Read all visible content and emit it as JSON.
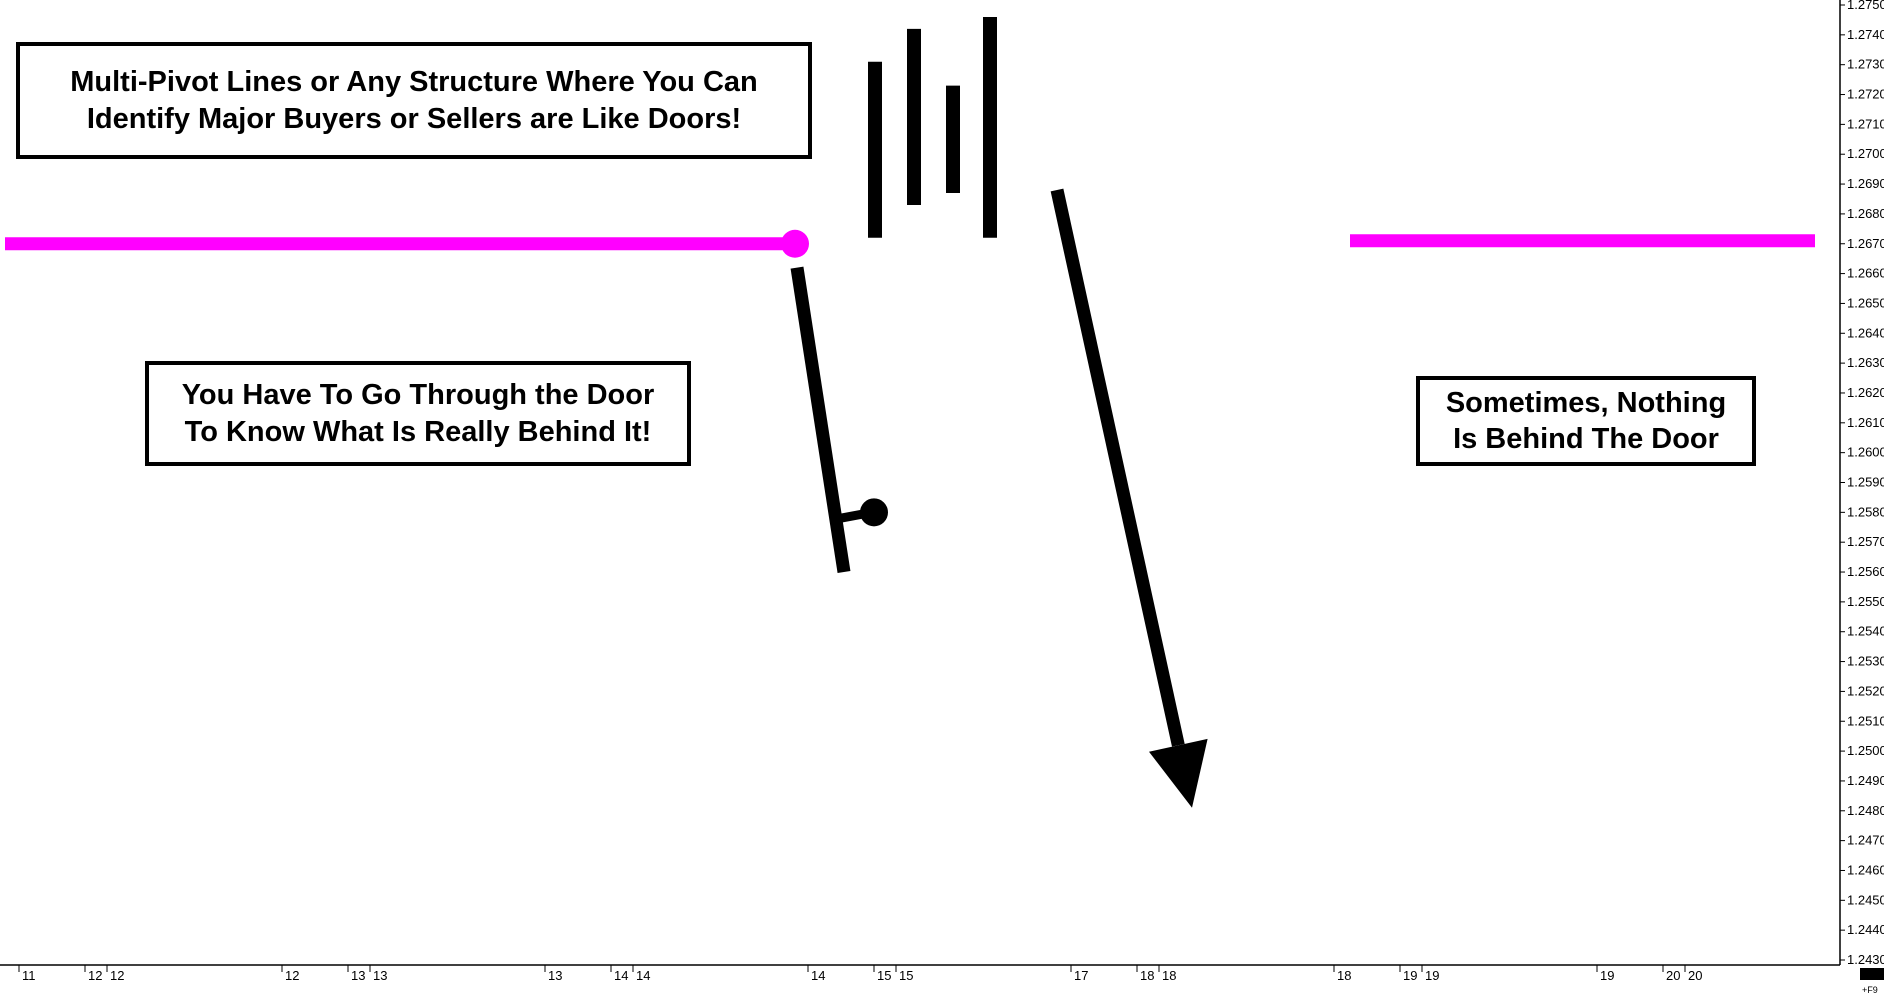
{
  "chart_data": {
    "type": "bar",
    "title": "",
    "xlabel": "",
    "ylabel": "",
    "ylim": [
      1.243,
      1.275
    ],
    "y_ticks": [
      "1.2430",
      "1.2440",
      "1.2450",
      "1.2460",
      "1.2470",
      "1.2480",
      "1.2490",
      "1.2500",
      "1.2510",
      "1.2520",
      "1.2530",
      "1.2540",
      "1.2550",
      "1.2560",
      "1.2570",
      "1.2580",
      "1.2590",
      "1.2600",
      "1.2610",
      "1.2620",
      "1.2630",
      "1.2640",
      "1.2650",
      "1.2660",
      "1.2670",
      "1.2680",
      "1.2690",
      "1.2700",
      "1.2710",
      "1.2720",
      "1.2730",
      "1.2740",
      "1.2750"
    ],
    "x_ticks": [
      "11",
      "12",
      "12",
      "12",
      "13",
      "13",
      "13",
      "14",
      "14",
      "14",
      "15",
      "15",
      "17",
      "18",
      "18",
      "18",
      "19",
      "19",
      "19",
      "20",
      "20"
    ],
    "grid": false,
    "level_line": {
      "price": 1.267,
      "color": "#ff00ff"
    },
    "bars": [
      {
        "high": 1.2662,
        "low": 1.256,
        "close": 1.258
      },
      {
        "high": 1.2731,
        "low": 1.2672
      },
      {
        "high": 1.2742,
        "low": 1.2683
      },
      {
        "high": 1.2723,
        "low": 1.2687
      },
      {
        "high": 1.2746,
        "low": 1.2672
      }
    ],
    "arrow": {
      "from_price": 1.2688,
      "to_price": 1.2481,
      "color": "#000000"
    },
    "annotations": [
      {
        "lines": [
          "Multi-Pivot Lines or Any Structure Where You Can",
          "Identify Major Buyers or Sellers are Like Doors!"
        ]
      },
      {
        "lines": [
          "You Have To Go Through the Door",
          "To Know What Is Really Behind It!"
        ]
      },
      {
        "lines": [
          "Sometimes, Nothing",
          "Is Behind The Door"
        ]
      }
    ]
  }
}
